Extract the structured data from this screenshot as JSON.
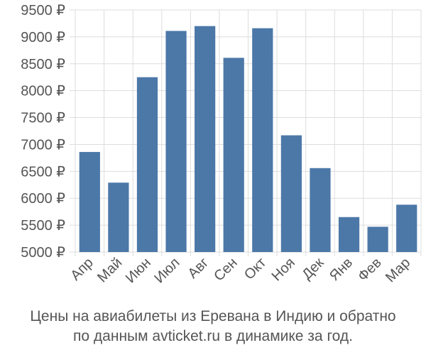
{
  "chart_data": {
    "type": "bar",
    "categories": [
      "Апр",
      "Май",
      "Июн",
      "Июл",
      "Авг",
      "Сен",
      "Окт",
      "Ноя",
      "Дек",
      "Янв",
      "Фев",
      "Мар"
    ],
    "values": [
      6860,
      6290,
      8250,
      9110,
      9200,
      8610,
      9160,
      7170,
      6560,
      5650,
      5470,
      5880
    ],
    "ylim": [
      5000,
      9500
    ],
    "yticks": [
      5000,
      5500,
      6000,
      6500,
      7000,
      7500,
      8000,
      8500,
      9000,
      9500
    ],
    "y_tick_labels": [
      "5000 ₽",
      "5500 ₽",
      "6000 ₽",
      "6500 ₽",
      "7000 ₽",
      "7500 ₽",
      "8000 ₽",
      "8500 ₽",
      "9000 ₽",
      "9500 ₽"
    ],
    "grid": true,
    "bar_color": "#4c78a8",
    "grid_color": "#dddddd",
    "caption_line1": "Цены на авиабилеты из Еревана в Индию и обратно",
    "caption_line2": "по данным avticket.ru в динамике за год."
  }
}
